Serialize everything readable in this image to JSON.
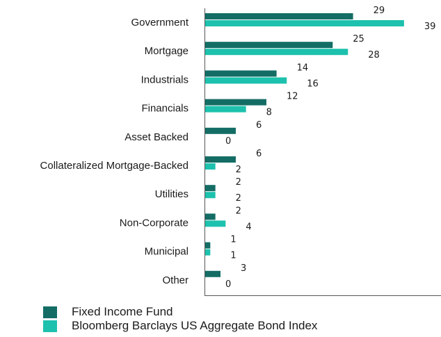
{
  "chart_data": {
    "type": "bar",
    "orientation": "horizontal",
    "categories": [
      "Government",
      "Mortgage",
      "Industrials",
      "Financials",
      "Asset Backed",
      "Collateralized Mortgage-Backed",
      "Utilities",
      "Non-Corporate",
      "Municipal",
      "Other"
    ],
    "series": [
      {
        "name": "Fixed Income Fund",
        "color": "#136d65",
        "values": [
          29,
          25,
          14,
          12,
          6,
          6,
          2,
          2,
          1,
          3
        ]
      },
      {
        "name": "Bloomberg Barclays US Aggregate Bond Index",
        "color": "#1dc1ad",
        "values": [
          39,
          28,
          16,
          8,
          0,
          2,
          2,
          4,
          1,
          0
        ]
      }
    ],
    "xlim": [
      0,
      46
    ],
    "legend_position": "bottom-left",
    "grid": false
  }
}
